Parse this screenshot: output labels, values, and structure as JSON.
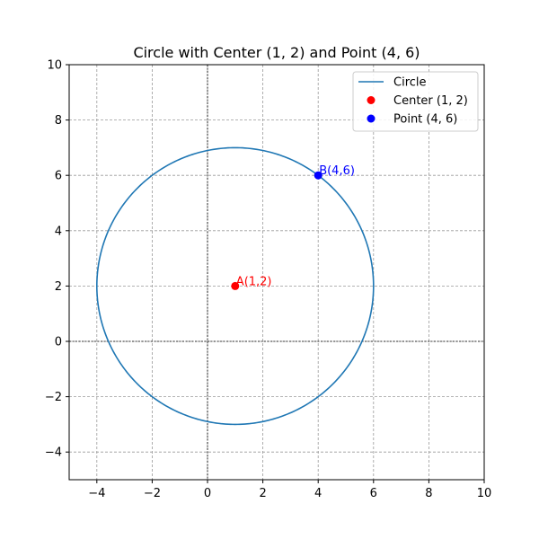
{
  "chart_data": {
    "type": "scatter",
    "title": "Circle with Center (1, 2) and Point (4, 6)",
    "xlabel": "",
    "ylabel": "",
    "xlim": [
      -5,
      10
    ],
    "ylim": [
      -5,
      10
    ],
    "xticks": [
      -4,
      -2,
      0,
      2,
      4,
      6,
      8,
      10
    ],
    "yticks": [
      -4,
      -2,
      0,
      2,
      4,
      6,
      8,
      10
    ],
    "grid": true,
    "axis_lines_at_zero": true,
    "legend_position": "top-right",
    "series": [
      {
        "name": "Circle",
        "kind": "line",
        "color": "#1f77b4",
        "center": [
          1,
          2
        ],
        "radius": 5
      },
      {
        "name": "Center (1, 2)",
        "kind": "point",
        "color": "#ff0000",
        "x": 1,
        "y": 2,
        "annotation": "A(1,2)"
      },
      {
        "name": "Point (4, 6)",
        "kind": "point",
        "color": "#0000ff",
        "x": 4,
        "y": 6,
        "annotation": "B(4,6)"
      }
    ]
  }
}
